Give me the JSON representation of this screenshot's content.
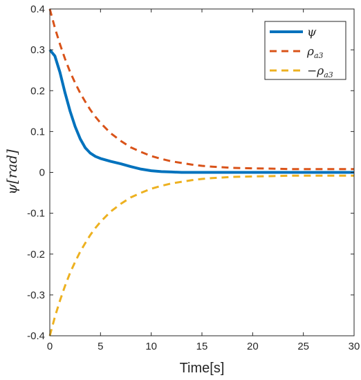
{
  "chart_data": {
    "type": "line",
    "xlabel": "Time[s]",
    "ylabel": "ψ[rad]",
    "xlim": [
      0,
      30
    ],
    "ylim": [
      -0.4,
      0.4
    ],
    "xticks": [
      "0",
      "5",
      "10",
      "15",
      "20",
      "25",
      "30"
    ],
    "yticks": [
      "-0.4",
      "-0.3",
      "-0.2",
      "-0.1",
      "0",
      "0.1",
      "0.2",
      "0.3",
      "0.4"
    ],
    "grid": false,
    "legend_position": "top-right",
    "x": [
      0,
      0.5,
      1,
      1.5,
      2,
      2.5,
      3,
      3.5,
      4,
      4.5,
      5,
      6,
      7,
      8,
      9,
      10,
      11,
      12,
      13,
      14,
      15,
      16,
      18,
      20,
      22,
      24,
      26,
      28,
      30
    ],
    "series": [
      {
        "name": "ψ",
        "color": "#0072BD",
        "style": "solid",
        "values": [
          0.3,
          0.285,
          0.245,
          0.195,
          0.15,
          0.112,
          0.082,
          0.06,
          0.047,
          0.039,
          0.034,
          0.027,
          0.021,
          0.014,
          0.008,
          0.004,
          0.002,
          0.001,
          0.0,
          0.0,
          0.0,
          0.0,
          0.0,
          0.0,
          0.0,
          0.0,
          0.0,
          0.0,
          0.0
        ]
      },
      {
        "name": "ρa3",
        "color": "#D95319",
        "style": "dashed",
        "values": [
          0.4,
          0.354,
          0.314,
          0.278,
          0.246,
          0.219,
          0.194,
          0.173,
          0.153,
          0.136,
          0.121,
          0.096,
          0.077,
          0.061,
          0.05,
          0.04,
          0.033,
          0.027,
          0.023,
          0.019,
          0.016,
          0.014,
          0.011,
          0.01,
          0.009,
          0.008,
          0.008,
          0.008,
          0.008
        ]
      },
      {
        "name": "−ρa3",
        "color": "#EDB120",
        "style": "dashed",
        "values": [
          -0.4,
          -0.354,
          -0.314,
          -0.278,
          -0.246,
          -0.219,
          -0.194,
          -0.173,
          -0.153,
          -0.136,
          -0.121,
          -0.096,
          -0.077,
          -0.061,
          -0.05,
          -0.04,
          -0.033,
          -0.027,
          -0.023,
          -0.019,
          -0.016,
          -0.014,
          -0.011,
          -0.01,
          -0.009,
          -0.008,
          -0.008,
          -0.008,
          -0.008
        ]
      }
    ],
    "legend": [
      {
        "label": "ψ",
        "color": "#0072BD",
        "style": "solid"
      },
      {
        "label": "ρ",
        "sub": "a3",
        "color": "#D95319",
        "style": "dashed"
      },
      {
        "label": "−ρ",
        "sub": "a3",
        "color": "#EDB120",
        "style": "dashed"
      }
    ]
  }
}
